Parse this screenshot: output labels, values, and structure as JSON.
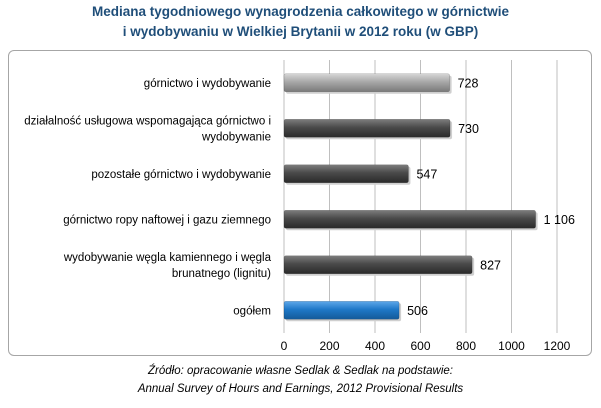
{
  "chart_data": {
    "type": "bar",
    "orientation": "horizontal",
    "title_lines": [
      "Mediana tygodniowego wynagrodzenia całkowitego w górnictwie",
      "i wydobywaniu w Wielkiej Brytanii w 2012 roku (w GBP)"
    ],
    "categories": [
      "górnictwo i wydobywanie",
      "działalność usługowa wspomagająca górnictwo i wydobywanie",
      "pozostałe górnictwo i wydobywanie",
      "górnictwo ropy naftowej i gazu ziemnego",
      "wydobywanie węgla kamiennego i węgla brunatnego (lignitu)",
      "ogółem"
    ],
    "category_lines": [
      [
        "górnictwo i wydobywanie"
      ],
      [
        "działalność usługowa wspomagająca górnictwo i",
        "wydobywanie"
      ],
      [
        "pozostałe górnictwo i wydobywanie"
      ],
      [
        "górnictwo ropy naftowej i gazu ziemnego"
      ],
      [
        "wydobywanie węgla kamiennego i węgla",
        "brunatnego (lignitu)"
      ],
      [
        "ogółem"
      ]
    ],
    "values": [
      728,
      730,
      547,
      1106,
      827,
      506
    ],
    "value_labels": [
      "728",
      "730",
      "547",
      "1 106",
      "827",
      "506"
    ],
    "bar_colors": [
      "#9a9a9a",
      "#4a4a4a",
      "#4a4a4a",
      "#4a4a4a",
      "#4a4a4a",
      "#1f78c8"
    ],
    "xlim": [
      0,
      1200
    ],
    "ticks": [
      0,
      200,
      400,
      600,
      800,
      1000,
      1200
    ],
    "grid": true
  },
  "source_lines": [
    "Źródło: opracowanie własne Sedlak & Sedlak na podstawie:",
    "Annual Survey of Hours and Earnings, 2012 Provisional Results"
  ]
}
